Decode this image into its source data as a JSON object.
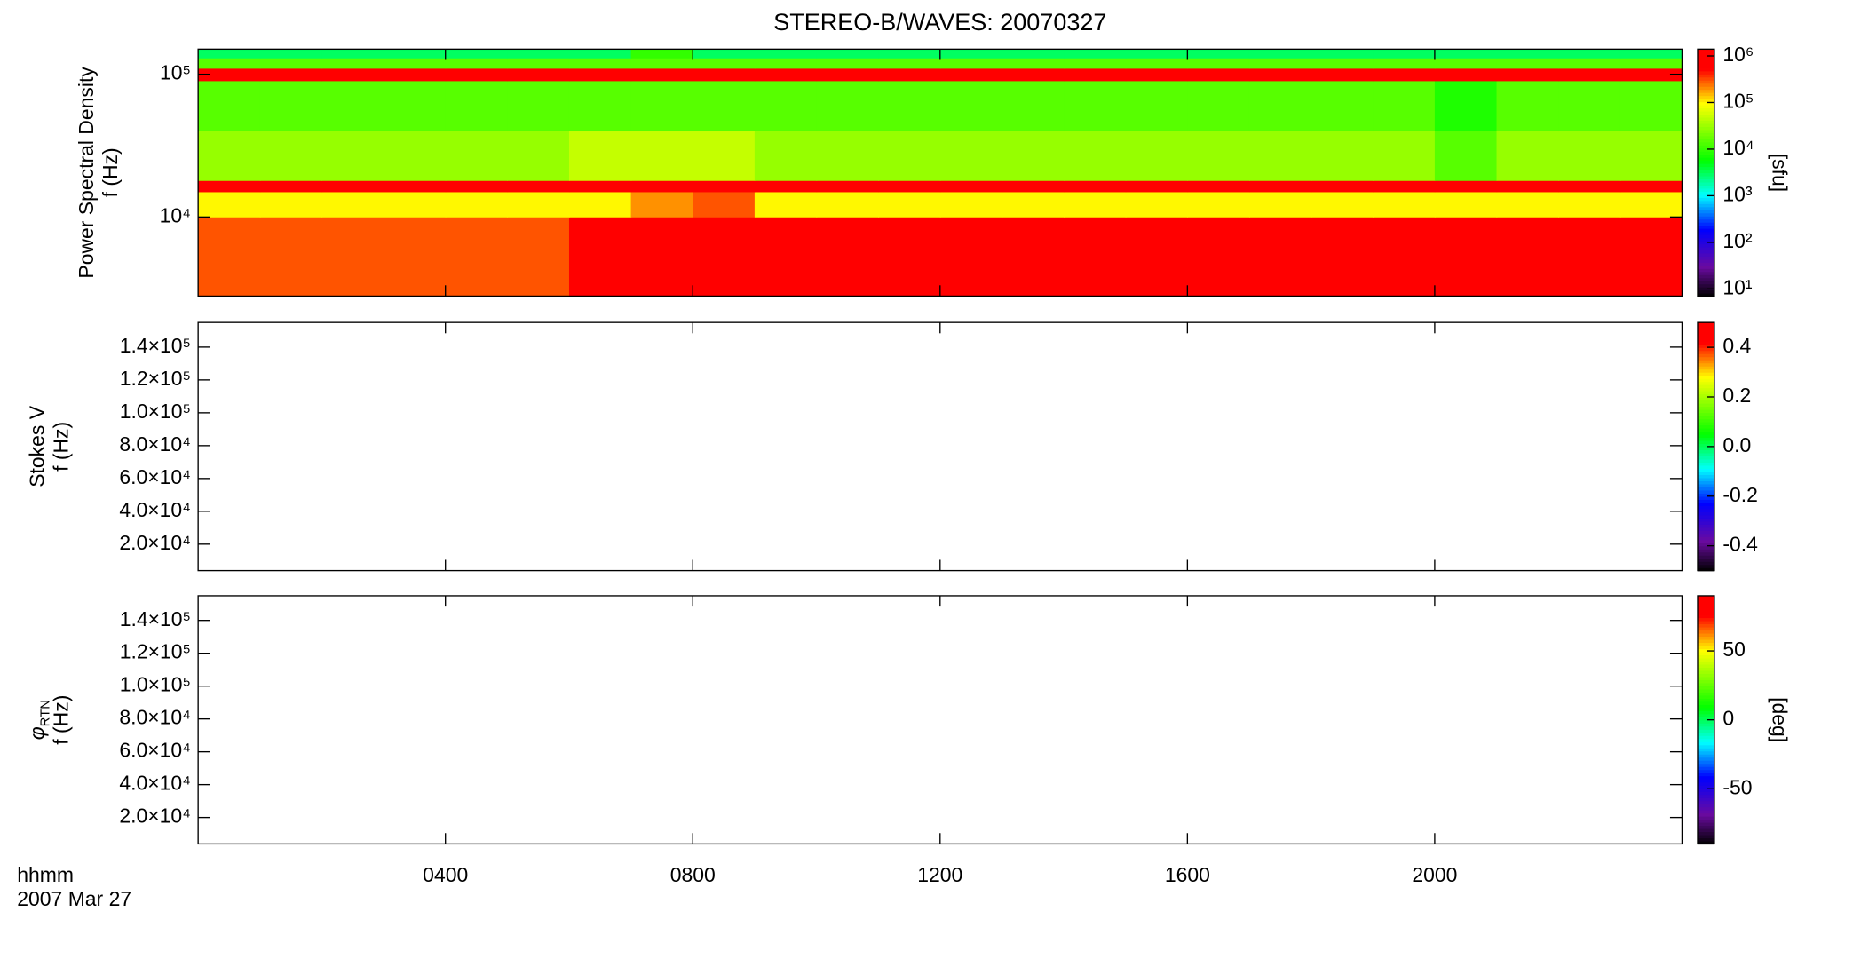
{
  "title": "STEREO-B/WAVES: 20070327",
  "xaxis": {
    "xlim": [
      0,
      24
    ],
    "xticks": [
      {
        "value": 4,
        "label": "0400"
      },
      {
        "value": 8,
        "label": "0800"
      },
      {
        "value": 12,
        "label": "1200"
      },
      {
        "value": 16,
        "label": "1600"
      },
      {
        "value": 20,
        "label": "2000"
      }
    ],
    "label": "hhmm",
    "date": "2007 Mar 27"
  },
  "colorscale": [
    [
      0,
      "#000000"
    ],
    [
      0.12,
      "#6a0aa0"
    ],
    [
      0.27,
      "#0000ff"
    ],
    [
      0.41,
      "#00ffff"
    ],
    [
      0.55,
      "#00ff00"
    ],
    [
      0.78,
      "#ffff00"
    ],
    [
      0.92,
      "#ff0000"
    ],
    [
      1,
      "#ff0000"
    ]
  ],
  "chart_data": [
    {
      "type": "heatmap",
      "ylabel": "Power Spectral Density",
      "ylabel2": "f (Hz)",
      "ylog": true,
      "ylim": [
        2790,
        150000
      ],
      "yticks": [
        {
          "value": 10000,
          "label": "10⁴"
        },
        {
          "value": 100000,
          "label": "10⁵"
        }
      ],
      "zlog": true,
      "zlim": [
        7,
        1400000
      ],
      "zunit": "[sfu]",
      "zticks": [
        {
          "value": 10,
          "label": "10¹"
        },
        {
          "value": 100,
          "label": "10²"
        },
        {
          "value": 1000,
          "label": "10³"
        },
        {
          "value": 10000,
          "label": "10⁴"
        },
        {
          "value": 100000,
          "label": "10⁵"
        },
        {
          "value": 1000000,
          "label": "10⁶"
        }
      ],
      "x_bins": [
        0,
        1,
        2,
        3,
        4,
        5,
        6,
        7,
        8,
        9,
        10,
        11,
        12,
        13,
        14,
        15,
        16,
        17,
        18,
        19,
        20,
        21,
        22,
        23,
        24
      ],
      "y_bins": [
        2790,
        10000,
        15000,
        18000,
        40000,
        90000,
        110000,
        130000,
        150000
      ],
      "z": [
        [
          300000,
          300000,
          300000,
          300000,
          300000,
          300000,
          1000000,
          1000000,
          1000000,
          800000,
          800000,
          600000,
          800000,
          800000,
          800000,
          600000,
          1000000,
          1000000,
          600000,
          800000,
          600000,
          800000,
          1000000,
          800000
        ],
        [
          100000,
          100000,
          100000,
          100000,
          100000,
          100000,
          100000,
          200000,
          300000,
          100000,
          100000,
          100000,
          100000,
          100000,
          100000,
          100000,
          100000,
          100000,
          100000,
          100000,
          100000,
          100000,
          100000,
          100000
        ],
        [
          1000000,
          1000000,
          1000000,
          1000000,
          1000000,
          1000000,
          1000000,
          1000000,
          1000000,
          1000000,
          1000000,
          1000000,
          1000000,
          1000000,
          1000000,
          1000000,
          1000000,
          1000000,
          1000000,
          1000000,
          1000000,
          1000000,
          1000000,
          1000000
        ],
        [
          30000,
          30000,
          30000,
          30000,
          30000,
          30000,
          50000,
          50000,
          50000,
          30000,
          30000,
          30000,
          30000,
          30000,
          30000,
          30000,
          30000,
          30000,
          30000,
          30000,
          15000,
          30000,
          30000,
          30000
        ],
        [
          15000,
          15000,
          15000,
          15000,
          15000,
          15000,
          15000,
          15000,
          15000,
          15000,
          15000,
          15000,
          15000,
          15000,
          15000,
          15000,
          15000,
          15000,
          15000,
          15000,
          8000,
          15000,
          15000,
          15000
        ],
        [
          800000,
          800000,
          800000,
          800000,
          800000,
          800000,
          800000,
          800000,
          800000,
          800000,
          800000,
          800000,
          800000,
          800000,
          800000,
          800000,
          800000,
          800000,
          800000,
          800000,
          800000,
          800000,
          800000,
          800000
        ],
        [
          15000,
          15000,
          15000,
          15000,
          15000,
          15000,
          15000,
          15000,
          15000,
          15000,
          15000,
          15000,
          15000,
          15000,
          15000,
          15000,
          15000,
          15000,
          15000,
          15000,
          15000,
          15000,
          15000,
          15000
        ],
        [
          3000,
          3000,
          3000,
          3000,
          3000,
          3000,
          3000,
          10000,
          3000,
          3000,
          3000,
          3000,
          3000,
          3000,
          3000,
          3000,
          3000,
          3000,
          3000,
          3000,
          3000,
          3000,
          3000,
          3000
        ]
      ]
    },
    {
      "type": "heatmap",
      "ylabel": "Stokes V",
      "ylabel2": "f (Hz)",
      "ylog": false,
      "ylim": [
        3900,
        155000
      ],
      "yticks": [
        {
          "value": 20000,
          "label": "2.0×10⁴"
        },
        {
          "value": 40000,
          "label": "4.0×10⁴"
        },
        {
          "value": 60000,
          "label": "6.0×10⁴"
        },
        {
          "value": 80000,
          "label": "8.0×10⁴"
        },
        {
          "value": 100000,
          "label": "1.0×10⁵"
        },
        {
          "value": 120000,
          "label": "1.2×10⁵"
        },
        {
          "value": 140000,
          "label": "1.4×10⁵"
        }
      ],
      "zlog": false,
      "zlim": [
        -0.5,
        0.5
      ],
      "zticks": [
        -0.4,
        -0.2,
        {
          "value": 0,
          "label": "0.0"
        },
        0.2,
        0.4
      ]
    },
    {
      "type": "heatmap",
      "ylabel_symbol": "φ",
      "ylabel_sub": "RTN",
      "ylabel2": "f (Hz)",
      "ylog": false,
      "ylim": [
        3900,
        155000
      ],
      "yticks": [
        {
          "value": 20000,
          "label": "2.0×10⁴"
        },
        {
          "value": 40000,
          "label": "4.0×10⁴"
        },
        {
          "value": 60000,
          "label": "6.0×10⁴"
        },
        {
          "value": 80000,
          "label": "8.0×10⁴"
        },
        {
          "value": 100000,
          "label": "1.0×10⁵"
        },
        {
          "value": 120000,
          "label": "1.2×10⁵"
        },
        {
          "value": 140000,
          "label": "1.4×10⁵"
        }
      ],
      "zlog": false,
      "zlim": [
        -90,
        90
      ],
      "zunit": "[deg]",
      "zticks": [
        -50,
        0,
        50
      ]
    }
  ]
}
